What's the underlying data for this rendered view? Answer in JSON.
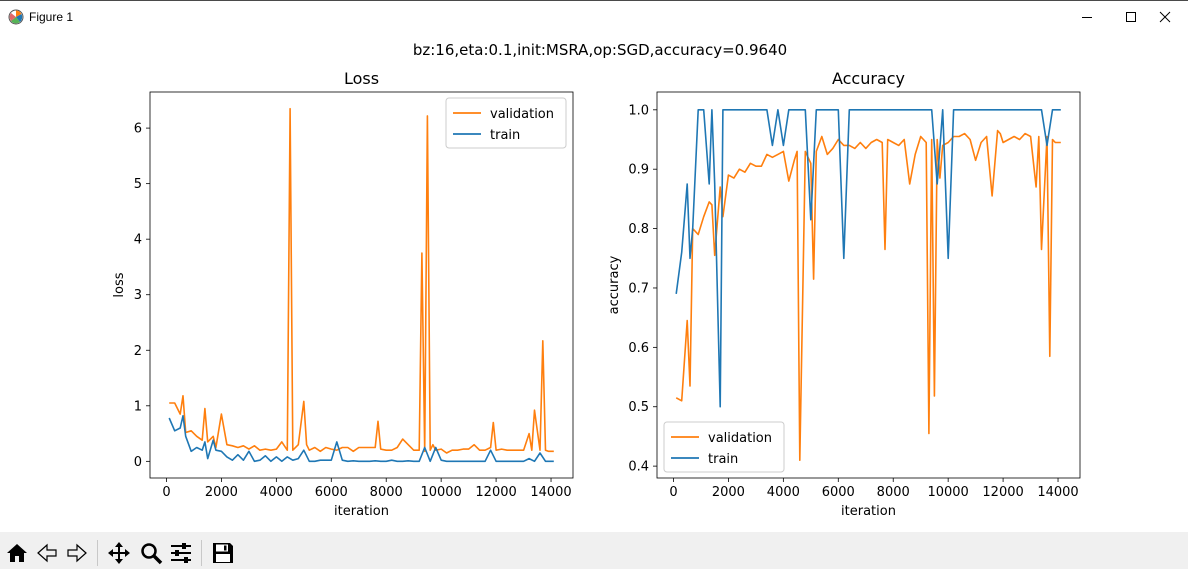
{
  "window": {
    "title": "Figure 1"
  },
  "figure": {
    "suptitle": "bz:16,eta:0.1,init:MSRA,op:SGD,accuracy=0.9640"
  },
  "toolbar": [
    {
      "name": "home-icon"
    },
    {
      "name": "back-icon"
    },
    {
      "name": "forward-icon"
    },
    {
      "name": "pan-icon"
    },
    {
      "name": "zoom-icon"
    },
    {
      "name": "configure-subplots-icon"
    },
    {
      "name": "save-icon"
    }
  ],
  "colors": {
    "validation": "#ff7f0e",
    "train": "#1f77b4"
  },
  "chart_data": [
    {
      "type": "line",
      "title": "Loss",
      "xlabel": "iteration",
      "ylabel": "loss",
      "xlim": [
        -600,
        14800
      ],
      "ylim": [
        -0.3,
        6.65
      ],
      "xticks": [
        0,
        2000,
        4000,
        6000,
        8000,
        10000,
        12000,
        14000
      ],
      "yticks": [
        0,
        1,
        2,
        3,
        4,
        5,
        6
      ],
      "legend_location": "upper right",
      "series": [
        {
          "name": "validation",
          "x": [
            100,
            300,
            500,
            600,
            700,
            900,
            1100,
            1300,
            1400,
            1500,
            1700,
            1800,
            2000,
            2200,
            2400,
            2600,
            2800,
            3000,
            3200,
            3400,
            3600,
            3800,
            4000,
            4200,
            4400,
            4500,
            4600,
            4800,
            5000,
            5100,
            5200,
            5400,
            5600,
            5800,
            6000,
            6200,
            6400,
            6600,
            6800,
            7000,
            7200,
            7400,
            7600,
            7700,
            7800,
            8000,
            8200,
            8400,
            8600,
            8800,
            9000,
            9200,
            9300,
            9400,
            9500,
            9600,
            9700,
            9800,
            10000,
            10200,
            10400,
            10600,
            10800,
            11000,
            11200,
            11400,
            11600,
            11800,
            11900,
            12000,
            12200,
            12400,
            12600,
            12800,
            13000,
            13200,
            13300,
            13400,
            13600,
            13700,
            13800,
            13900,
            14100
          ],
          "values": [
            1.05,
            1.05,
            0.85,
            1.18,
            0.52,
            0.55,
            0.45,
            0.38,
            0.95,
            0.35,
            0.45,
            0.25,
            0.85,
            0.3,
            0.28,
            0.25,
            0.28,
            0.22,
            0.28,
            0.2,
            0.22,
            0.2,
            0.22,
            0.35,
            0.2,
            6.35,
            0.2,
            0.3,
            1.08,
            0.3,
            0.2,
            0.25,
            0.18,
            0.25,
            0.22,
            0.2,
            0.25,
            0.25,
            0.18,
            0.25,
            0.25,
            0.25,
            0.25,
            0.72,
            0.22,
            0.2,
            0.2,
            0.25,
            0.4,
            0.3,
            0.2,
            0.2,
            3.75,
            0.18,
            6.22,
            0.2,
            0.3,
            0.2,
            0.22,
            0.15,
            0.2,
            0.2,
            0.22,
            0.22,
            0.3,
            0.2,
            0.2,
            0.25,
            0.7,
            0.2,
            0.22,
            0.2,
            0.2,
            0.2,
            0.2,
            0.5,
            0.2,
            0.92,
            0.2,
            2.17,
            0.2,
            0.18,
            0.18
          ]
        },
        {
          "name": "train",
          "x": [
            100,
            300,
            500,
            600,
            700,
            900,
            1100,
            1300,
            1400,
            1500,
            1700,
            1800,
            2000,
            2200,
            2400,
            2600,
            2800,
            3000,
            3200,
            3400,
            3600,
            3800,
            4000,
            4200,
            4400,
            4600,
            4800,
            5000,
            5200,
            5400,
            5600,
            5800,
            6000,
            6200,
            6400,
            6600,
            6800,
            7000,
            7200,
            7400,
            7600,
            7800,
            8000,
            8200,
            8400,
            8600,
            8800,
            9000,
            9200,
            9400,
            9600,
            9800,
            10000,
            10200,
            10400,
            10600,
            10800,
            11000,
            11200,
            11400,
            11600,
            11800,
            12000,
            12200,
            12400,
            12600,
            12800,
            13000,
            13200,
            13400,
            13600,
            13800,
            14000,
            14100
          ],
          "values": [
            0.78,
            0.55,
            0.6,
            0.82,
            0.45,
            0.18,
            0.25,
            0.2,
            0.35,
            0.05,
            0.38,
            0.2,
            0.18,
            0.08,
            0.02,
            0.12,
            0.02,
            0.18,
            0.0,
            0.02,
            0.1,
            0.0,
            0.08,
            0.0,
            0.08,
            0.02,
            0.05,
            0.2,
            0.0,
            0.0,
            0.02,
            0.02,
            0.02,
            0.35,
            0.02,
            0.0,
            0.01,
            0.0,
            0.0,
            0.0,
            0.01,
            0.0,
            0.0,
            0.02,
            0.0,
            0.0,
            0.01,
            0.0,
            0.0,
            0.25,
            0.0,
            0.25,
            0.02,
            0.0,
            0.0,
            0.0,
            0.0,
            0.0,
            0.0,
            0.0,
            0.0,
            0.2,
            0.0,
            0.0,
            0.0,
            0.0,
            0.0,
            0.0,
            0.05,
            0.0,
            0.15,
            0.0,
            0.0,
            0.0
          ]
        }
      ]
    },
    {
      "type": "line",
      "title": "Accuracy",
      "xlabel": "iteration",
      "ylabel": "accuracy",
      "xlim": [
        -600,
        14800
      ],
      "ylim": [
        0.38,
        1.03
      ],
      "xticks": [
        0,
        2000,
        4000,
        6000,
        8000,
        10000,
        12000,
        14000
      ],
      "yticks": [
        0.4,
        0.5,
        0.6,
        0.7,
        0.8,
        0.9,
        1.0
      ],
      "legend_location": "lower left",
      "series": [
        {
          "name": "validation",
          "x": [
            100,
            300,
            500,
            600,
            700,
            900,
            1100,
            1300,
            1400,
            1500,
            1700,
            1800,
            2000,
            2200,
            2400,
            2600,
            2800,
            3000,
            3200,
            3400,
            3600,
            3800,
            4000,
            4200,
            4400,
            4500,
            4600,
            4800,
            5000,
            5100,
            5200,
            5400,
            5600,
            5800,
            6000,
            6200,
            6400,
            6600,
            6800,
            7000,
            7200,
            7400,
            7600,
            7700,
            7800,
            8000,
            8200,
            8400,
            8600,
            8800,
            9000,
            9200,
            9300,
            9400,
            9500,
            9600,
            9700,
            9800,
            10000,
            10200,
            10400,
            10600,
            10800,
            11000,
            11200,
            11400,
            11600,
            11800,
            11900,
            12000,
            12200,
            12400,
            12600,
            12800,
            13000,
            13200,
            13300,
            13400,
            13600,
            13700,
            13800,
            13900,
            14100
          ],
          "values": [
            0.515,
            0.51,
            0.645,
            0.535,
            0.8,
            0.79,
            0.82,
            0.845,
            0.84,
            0.755,
            0.87,
            0.82,
            0.89,
            0.885,
            0.9,
            0.895,
            0.91,
            0.905,
            0.905,
            0.925,
            0.92,
            0.925,
            0.93,
            0.88,
            0.915,
            0.93,
            0.41,
            0.93,
            0.91,
            0.715,
            0.93,
            0.955,
            0.925,
            0.935,
            0.95,
            0.94,
            0.94,
            0.935,
            0.945,
            0.935,
            0.945,
            0.95,
            0.945,
            0.765,
            0.95,
            0.945,
            0.94,
            0.95,
            0.875,
            0.925,
            0.955,
            0.945,
            0.455,
            0.95,
            0.518,
            0.95,
            0.885,
            0.94,
            0.945,
            0.955,
            0.955,
            0.96,
            0.95,
            0.915,
            0.945,
            0.955,
            0.855,
            0.965,
            0.96,
            0.945,
            0.95,
            0.955,
            0.95,
            0.96,
            0.955,
            0.87,
            0.955,
            0.765,
            0.955,
            0.585,
            0.95,
            0.945,
            0.945
          ]
        },
        {
          "name": "train",
          "x": [
            100,
            300,
            500,
            600,
            700,
            900,
            1100,
            1300,
            1400,
            1500,
            1700,
            1800,
            2000,
            2200,
            2400,
            2600,
            2800,
            3000,
            3200,
            3400,
            3600,
            3800,
            4000,
            4200,
            4400,
            4600,
            4800,
            5000,
            5200,
            5400,
            5600,
            5800,
            6000,
            6200,
            6400,
            6600,
            6800,
            7000,
            7200,
            7400,
            7600,
            7800,
            8000,
            8200,
            8400,
            8600,
            8800,
            9000,
            9200,
            9400,
            9600,
            9800,
            10000,
            10200,
            10400,
            10600,
            10800,
            11000,
            11200,
            11400,
            11600,
            11800,
            12000,
            12200,
            12400,
            12600,
            12800,
            13000,
            13200,
            13400,
            13600,
            13800,
            14000,
            14100
          ],
          "values": [
            0.69,
            0.76,
            0.875,
            0.75,
            0.8,
            1.0,
            1.0,
            0.875,
            1.0,
            0.875,
            0.5,
            1.0,
            1.0,
            1.0,
            1.0,
            1.0,
            1.0,
            1.0,
            1.0,
            1.0,
            0.94,
            1.0,
            0.94,
            1.0,
            1.0,
            1.0,
            1.0,
            0.815,
            1.0,
            1.0,
            1.0,
            1.0,
            1.0,
            0.75,
            1.0,
            1.0,
            1.0,
            1.0,
            1.0,
            1.0,
            1.0,
            1.0,
            1.0,
            1.0,
            1.0,
            1.0,
            1.0,
            1.0,
            1.0,
            1.0,
            0.875,
            1.0,
            0.75,
            1.0,
            1.0,
            1.0,
            1.0,
            1.0,
            1.0,
            1.0,
            1.0,
            1.0,
            1.0,
            1.0,
            1.0,
            1.0,
            1.0,
            1.0,
            1.0,
            1.0,
            0.94,
            1.0,
            1.0,
            1.0
          ]
        }
      ]
    }
  ]
}
